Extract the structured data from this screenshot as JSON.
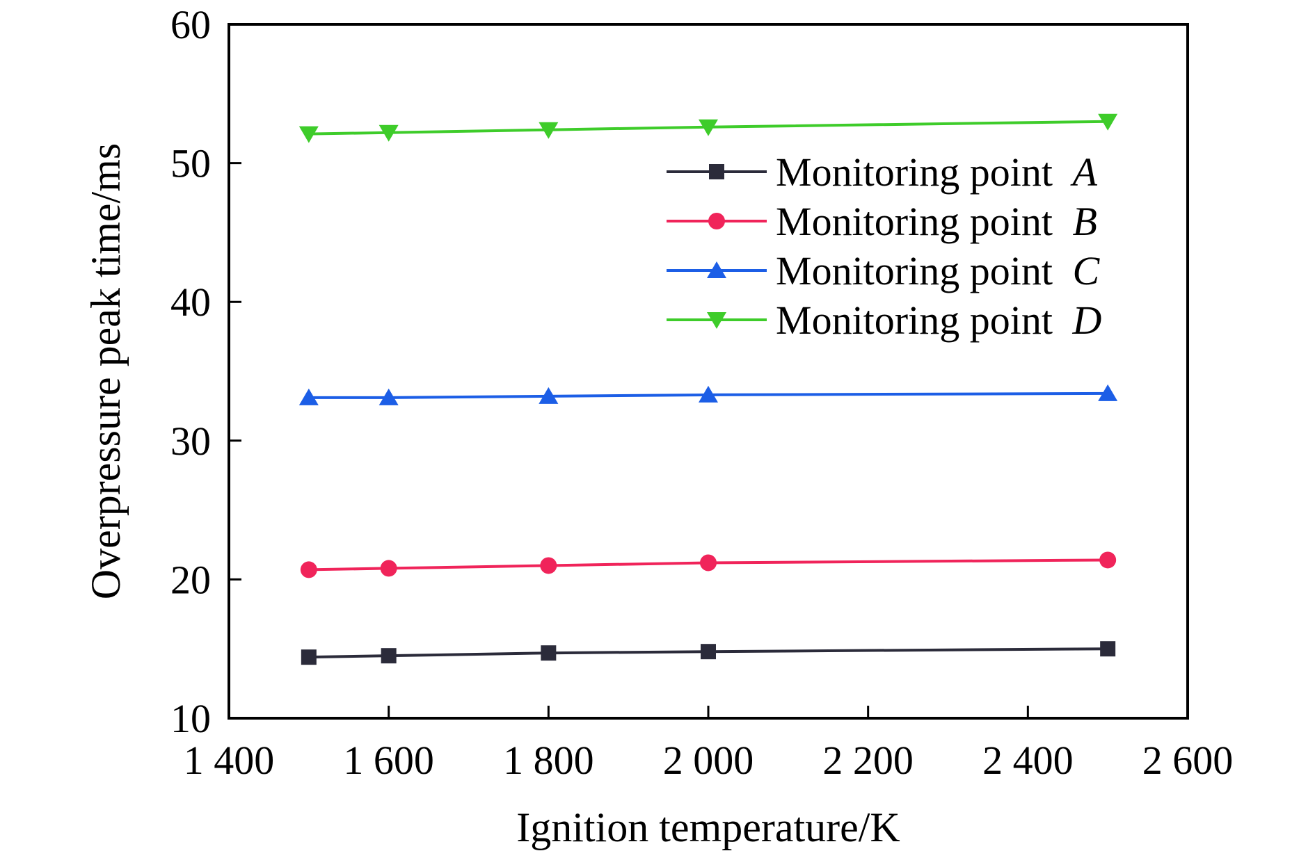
{
  "chart_data": {
    "type": "line",
    "xlabel": "Ignition temperature/K",
    "ylabel": "Overpressure peak time/ms",
    "xlim": [
      1400,
      2600
    ],
    "ylim": [
      10,
      60
    ],
    "xticks": [
      1400,
      1600,
      1800,
      2000,
      2200,
      2400,
      2600
    ],
    "xtick_labels": [
      "1 400",
      "1 600",
      "1 800",
      "2 000",
      "2 200",
      "2 400",
      "2 600"
    ],
    "yticks": [
      10,
      20,
      30,
      40,
      50,
      60
    ],
    "ytick_labels": [
      "10",
      "20",
      "30",
      "40",
      "50",
      "60"
    ],
    "x": [
      1500,
      1600,
      1800,
      2000,
      2500
    ],
    "legend_position": "upper-right",
    "grid": false,
    "series": [
      {
        "name": "Monitoring point ",
        "italic": "A",
        "marker": "square",
        "color": "#2b2b3a",
        "values": [
          14.4,
          14.5,
          14.7,
          14.8,
          15.0
        ]
      },
      {
        "name": "Monitoring point ",
        "italic": "B",
        "marker": "circle",
        "color": "#f0245a",
        "values": [
          20.7,
          20.8,
          21.0,
          21.2,
          21.4
        ]
      },
      {
        "name": "Monitoring point ",
        "italic": "C",
        "marker": "triangle-up",
        "color": "#1c5ee6",
        "values": [
          33.1,
          33.1,
          33.2,
          33.3,
          33.4
        ]
      },
      {
        "name": "Monitoring point ",
        "italic": "D",
        "marker": "triangle-down",
        "color": "#3ecc2a",
        "values": [
          52.1,
          52.2,
          52.4,
          52.6,
          53.0
        ]
      }
    ]
  }
}
